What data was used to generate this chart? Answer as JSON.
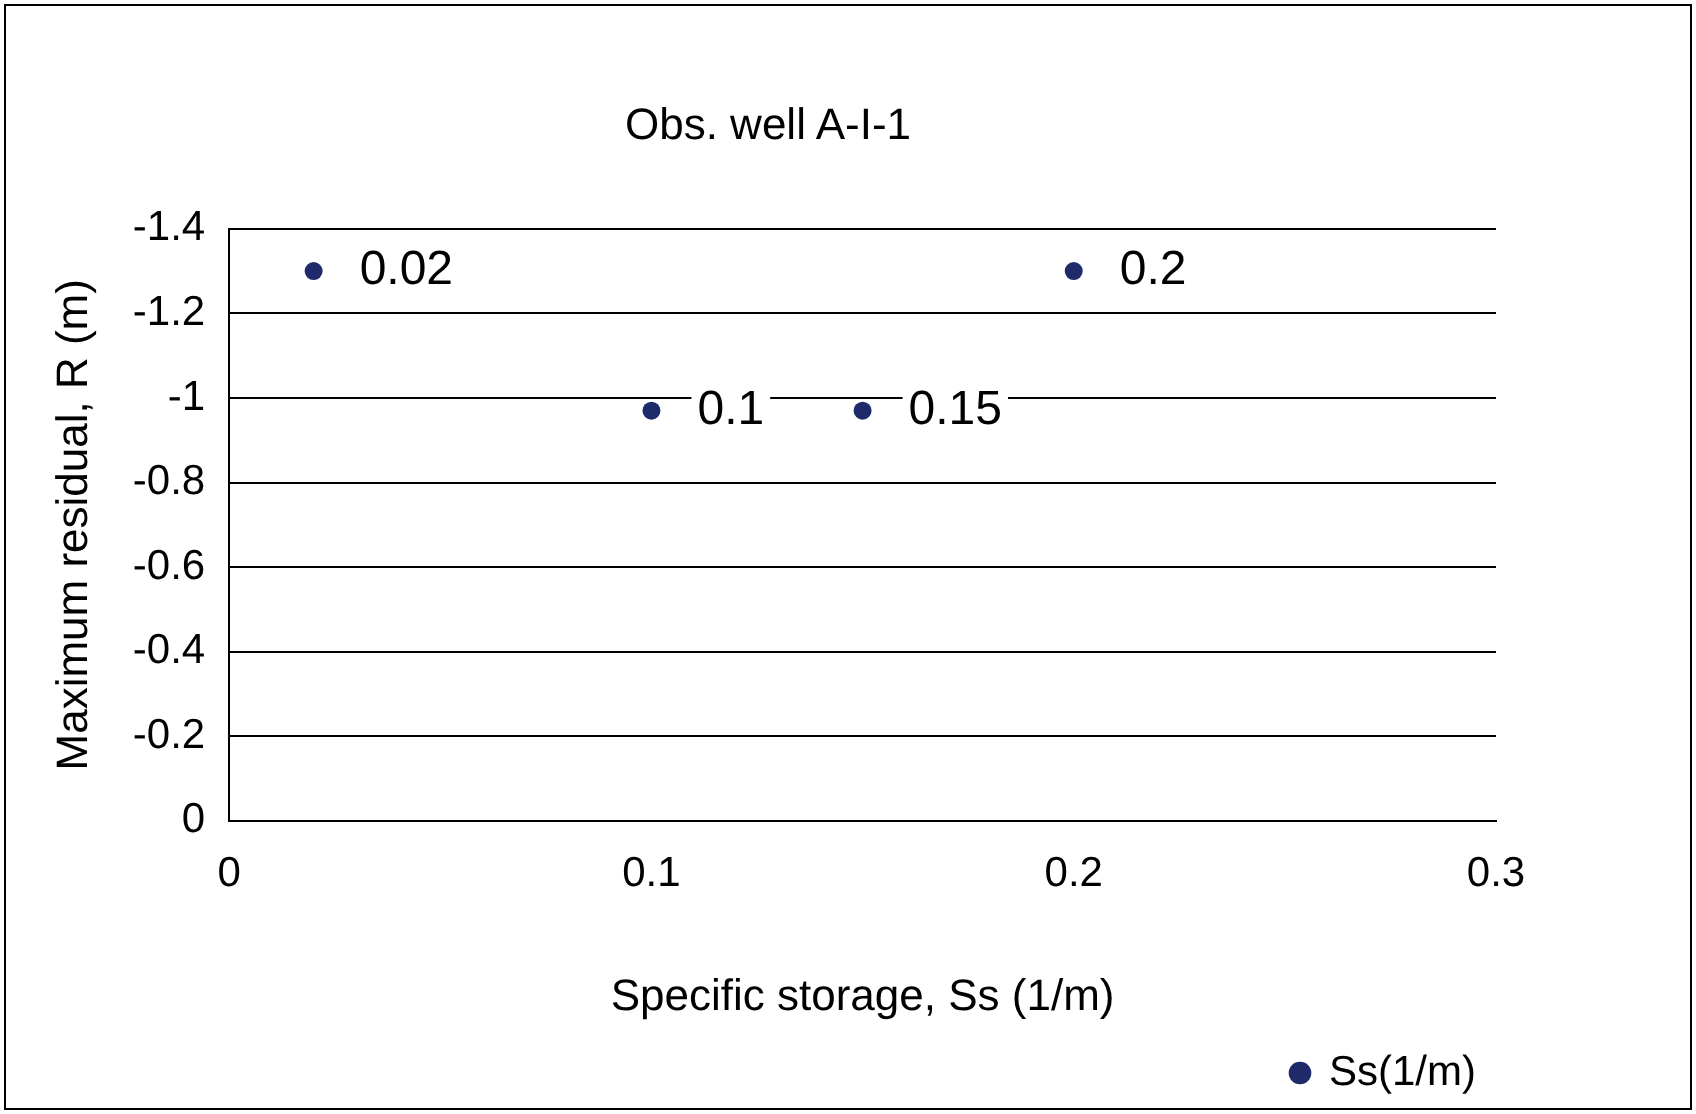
{
  "chart_data": {
    "type": "scatter",
    "title": "Obs. well A-I-1",
    "xlabel": "Specific storage, Ss (1/m)",
    "ylabel": "Maximum residual, R (m)",
    "series": [
      {
        "name": "Ss(1/m)",
        "color": "#1f2a6b",
        "x": [
          0.02,
          0.1,
          0.15,
          0.2
        ],
        "values": [
          -1.3,
          -0.97,
          -0.97,
          -1.3
        ]
      }
    ],
    "annotations": [
      {
        "text": "0.02",
        "x": 0.02,
        "y": -1.3
      },
      {
        "text": "0.1",
        "x": 0.1,
        "y": -0.97
      },
      {
        "text": "0.15",
        "x": 0.15,
        "y": -0.97
      },
      {
        "text": "0.2",
        "x": 0.2,
        "y": -1.3
      }
    ],
    "xlim": [
      0,
      0.3
    ],
    "xticks": [
      0,
      0.1,
      0.2,
      0.3
    ],
    "ylim": [
      0,
      -1.4
    ],
    "yticks": [
      0,
      -0.2,
      -0.4,
      -0.6,
      -0.8,
      -1,
      -1.2,
      -1.4
    ],
    "grid": "y",
    "legend": "bottom right",
    "marker": "circle"
  }
}
